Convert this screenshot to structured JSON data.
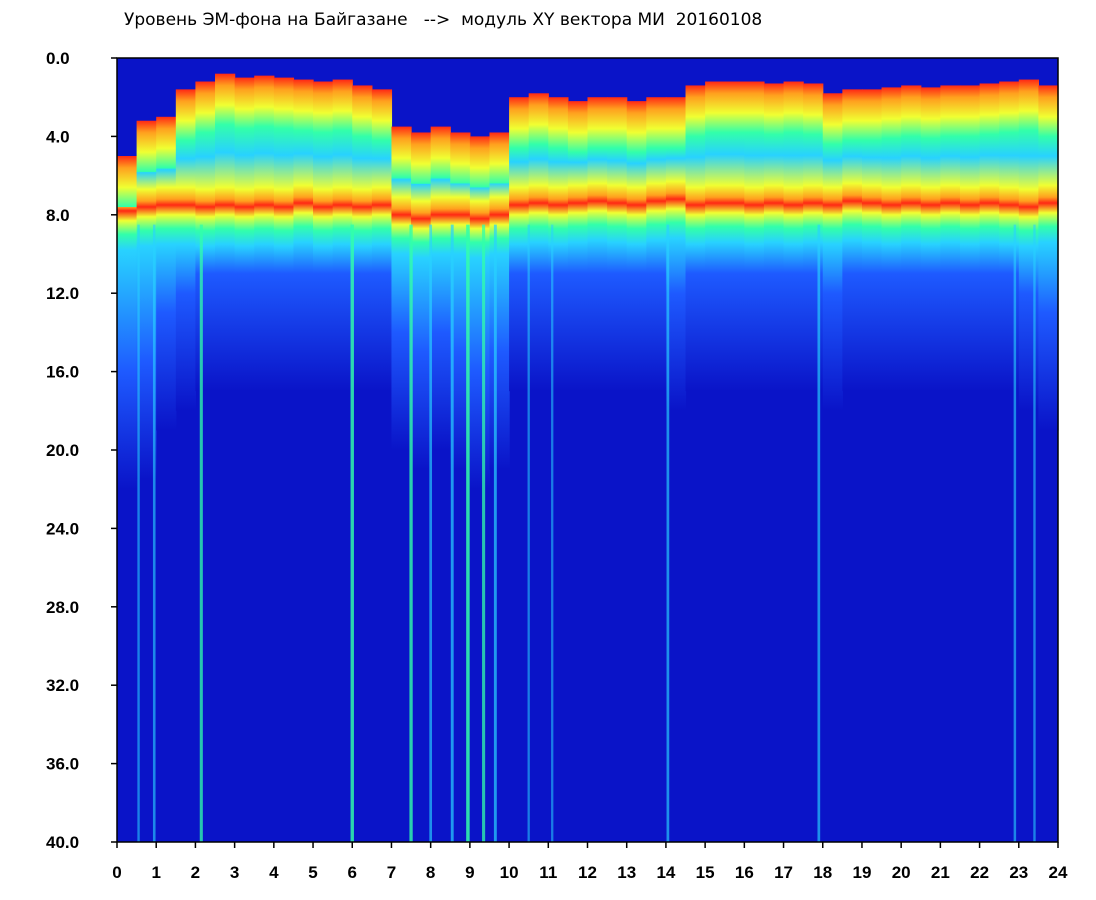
{
  "chart_data": {
    "type": "heatmap",
    "title": "Уровень ЭМ-фона на Байгазане   -->  модуль XY вектора МИ  20160108",
    "xlabel": "",
    "ylabel": "",
    "xlim": [
      0,
      24
    ],
    "ylim": [
      0.0,
      40.0
    ],
    "y_inverted": true,
    "x_ticks": [
      "0",
      "1",
      "2",
      "3",
      "4",
      "5",
      "6",
      "7",
      "8",
      "9",
      "10",
      "11",
      "12",
      "13",
      "14",
      "15",
      "16",
      "17",
      "18",
      "19",
      "20",
      "21",
      "22",
      "23",
      "24"
    ],
    "y_ticks": [
      "0.0",
      "4.0",
      "8.0",
      "12.0",
      "16.0",
      "20.0",
      "24.0",
      "28.0",
      "32.0",
      "36.0",
      "40.0"
    ],
    "colormap": [
      "#0a14c8",
      "#1e5aff",
      "#28d2ff",
      "#32ffaa",
      "#f0ff32",
      "#ffa01e",
      "#ff2814"
    ],
    "hour_profile": {
      "hours": [
        0,
        0.5,
        1,
        1.5,
        2,
        2.5,
        3,
        3.5,
        4,
        4.5,
        5,
        5.5,
        6,
        6.5,
        7,
        7.5,
        8,
        8.5,
        9,
        9.5,
        10,
        10.5,
        11,
        11.5,
        12,
        12.5,
        13,
        13.5,
        14,
        14.5,
        15,
        15.5,
        16,
        16.5,
        17,
        17.5,
        18,
        18.5,
        19,
        19.5,
        20,
        20.5,
        21,
        21.5,
        22,
        22.5,
        23,
        23.5,
        24
      ],
      "top_edge": [
        5.0,
        3.2,
        3.0,
        1.6,
        1.2,
        0.8,
        1.0,
        0.9,
        1.0,
        1.1,
        1.2,
        1.1,
        1.4,
        1.6,
        3.5,
        3.8,
        3.5,
        3.8,
        4.0,
        3.8,
        2.0,
        1.8,
        2.0,
        2.2,
        2.0,
        2.0,
        2.2,
        2.0,
        2.0,
        1.4,
        1.2,
        1.2,
        1.2,
        1.3,
        1.2,
        1.3,
        1.8,
        1.6,
        1.6,
        1.5,
        1.4,
        1.5,
        1.4,
        1.4,
        1.3,
        1.2,
        1.1,
        1.4,
        1.6
      ],
      "band_center": [
        7.8,
        7.6,
        7.5,
        7.5,
        7.6,
        7.5,
        7.6,
        7.5,
        7.6,
        7.4,
        7.6,
        7.5,
        7.6,
        7.5,
        8.0,
        8.2,
        8.0,
        8.0,
        8.2,
        8.0,
        7.5,
        7.4,
        7.5,
        7.4,
        7.3,
        7.4,
        7.5,
        7.3,
        7.2,
        7.5,
        7.4,
        7.4,
        7.5,
        7.4,
        7.5,
        7.4,
        7.5,
        7.3,
        7.4,
        7.5,
        7.4,
        7.5,
        7.4,
        7.5,
        7.4,
        7.5,
        7.6,
        7.4,
        7.5
      ],
      "bottom_edge": [
        16.0,
        15.5,
        13.0,
        12.0,
        11.0,
        11.0,
        11.0,
        11.0,
        11.0,
        11.0,
        11.0,
        11.0,
        11.0,
        11.0,
        14.0,
        15.0,
        14.0,
        15.0,
        16.0,
        15.0,
        11.0,
        11.0,
        11.0,
        11.0,
        11.0,
        11.0,
        11.0,
        11.0,
        12.0,
        11.0,
        11.0,
        11.0,
        11.0,
        11.0,
        11.0,
        11.0,
        12.0,
        11.0,
        11.0,
        11.0,
        11.0,
        11.0,
        11.0,
        11.0,
        11.0,
        11.0,
        12.0,
        13.0,
        15.0
      ]
    },
    "spikes": [
      {
        "hour": 0.55,
        "strength": 0.45
      },
      {
        "hour": 0.95,
        "strength": 0.55
      },
      {
        "hour": 2.15,
        "strength": 0.8
      },
      {
        "hour": 6.0,
        "strength": 0.95
      },
      {
        "hour": 7.5,
        "strength": 0.9
      },
      {
        "hour": 8.0,
        "strength": 0.6
      },
      {
        "hour": 8.55,
        "strength": 0.7
      },
      {
        "hour": 8.95,
        "strength": 1.0
      },
      {
        "hour": 9.35,
        "strength": 0.8
      },
      {
        "hour": 9.65,
        "strength": 0.7
      },
      {
        "hour": 10.5,
        "strength": 0.4
      },
      {
        "hour": 11.1,
        "strength": 0.4
      },
      {
        "hour": 14.05,
        "strength": 0.6
      },
      {
        "hour": 17.9,
        "strength": 0.6
      },
      {
        "hour": 22.9,
        "strength": 0.5
      },
      {
        "hour": 23.4,
        "strength": 0.45
      }
    ]
  }
}
